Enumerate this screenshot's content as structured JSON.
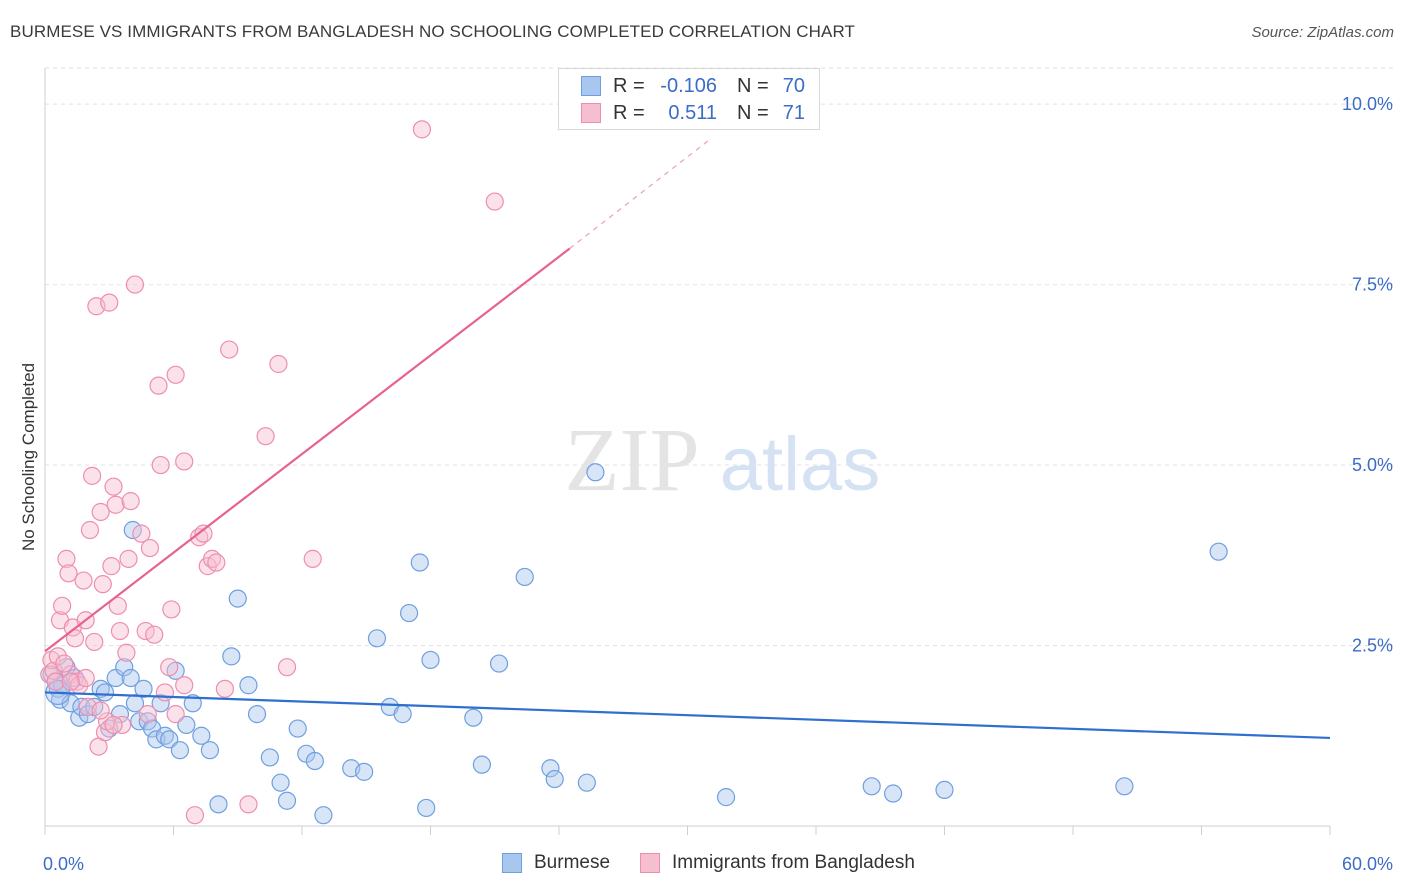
{
  "header": {
    "title": "BURMESE VS IMMIGRANTS FROM BANGLADESH NO SCHOOLING COMPLETED CORRELATION CHART",
    "source": "Source: ZipAtlas.com"
  },
  "watermark": {
    "zip": "ZIP",
    "atlas": "atlas"
  },
  "legend": {
    "r_label": "R =",
    "n_label": "N =",
    "rows": [
      {
        "series": "Burmese",
        "r": "-0.106",
        "n": "70"
      },
      {
        "series": "Immigrants from Bangladesh",
        "r": "0.511",
        "n": "71"
      }
    ]
  },
  "colors": {
    "burmese_fill": "#a9c6ee",
    "burmese_stroke": "#6f9fe0",
    "burmese_line": "#2f6fcf",
    "bangladesh_fill": "#f6bfd0",
    "bangladesh_stroke": "#ee8eaf",
    "bangladesh_line": "#e8628e",
    "tick_label": "#3b6cc7",
    "grid": "#e2e2e2"
  },
  "chart_data": {
    "type": "scatter",
    "title": "BURMESE VS IMMIGRANTS FROM BANGLADESH NO SCHOOLING COMPLETED CORRELATION CHART",
    "xlabel": "",
    "ylabel": "No Schooling Completed",
    "xlim": [
      0,
      60
    ],
    "ylim": [
      0,
      10.5
    ],
    "x_tick_labels": [
      "0.0%",
      "60.0%"
    ],
    "y_ticks": [
      2.5,
      5.0,
      7.5,
      10.0
    ],
    "y_tick_labels": [
      "2.5%",
      "5.0%",
      "7.5%",
      "10.0%"
    ],
    "grid": true,
    "legend_position": "top-center",
    "series": [
      {
        "name": "Burmese",
        "r": -0.106,
        "n": 70,
        "trend": {
          "x": [
            0,
            60
          ],
          "y": [
            1.85,
            1.22
          ]
        },
        "points": [
          [
            0.3,
            2.1
          ],
          [
            0.5,
            2.0
          ],
          [
            0.6,
            1.9
          ],
          [
            0.7,
            1.75
          ],
          [
            0.8,
            1.95
          ],
          [
            1.0,
            2.2
          ],
          [
            1.2,
            1.7
          ],
          [
            1.4,
            2.05
          ],
          [
            1.6,
            1.5
          ],
          [
            1.7,
            1.65
          ],
          [
            2.0,
            1.55
          ],
          [
            2.3,
            1.65
          ],
          [
            2.6,
            1.9
          ],
          [
            2.8,
            1.85
          ],
          [
            3.0,
            1.35
          ],
          [
            3.3,
            2.05
          ],
          [
            3.5,
            1.55
          ],
          [
            3.7,
            2.2
          ],
          [
            4.0,
            2.05
          ],
          [
            4.2,
            1.7
          ],
          [
            4.4,
            1.45
          ],
          [
            4.6,
            1.9
          ],
          [
            4.8,
            1.45
          ],
          [
            5.0,
            1.35
          ],
          [
            5.2,
            1.2
          ],
          [
            5.4,
            1.7
          ],
          [
            5.6,
            1.25
          ],
          [
            5.8,
            1.2
          ],
          [
            6.1,
            2.15
          ],
          [
            6.3,
            1.05
          ],
          [
            6.6,
            1.4
          ],
          [
            6.9,
            1.7
          ],
          [
            7.3,
            1.25
          ],
          [
            7.7,
            1.05
          ],
          [
            8.1,
            0.3
          ],
          [
            8.7,
            2.35
          ],
          [
            9.0,
            3.15
          ],
          [
            9.5,
            1.95
          ],
          [
            9.9,
            1.55
          ],
          [
            10.5,
            0.95
          ],
          [
            11.0,
            0.6
          ],
          [
            11.3,
            0.35
          ],
          [
            11.8,
            1.35
          ],
          [
            12.2,
            1.0
          ],
          [
            12.6,
            0.9
          ],
          [
            13.0,
            0.15
          ],
          [
            14.3,
            0.8
          ],
          [
            14.9,
            0.75
          ],
          [
            15.5,
            2.6
          ],
          [
            16.1,
            1.65
          ],
          [
            16.7,
            1.55
          ],
          [
            17.0,
            2.95
          ],
          [
            17.5,
            3.65
          ],
          [
            17.8,
            0.25
          ],
          [
            18.0,
            2.3
          ],
          [
            20.0,
            1.5
          ],
          [
            20.4,
            0.85
          ],
          [
            21.2,
            2.25
          ],
          [
            22.4,
            3.45
          ],
          [
            23.6,
            0.8
          ],
          [
            23.8,
            0.65
          ],
          [
            25.3,
            0.6
          ],
          [
            25.7,
            4.9
          ],
          [
            31.8,
            0.4
          ],
          [
            38.6,
            0.55
          ],
          [
            39.6,
            0.45
          ],
          [
            42.0,
            0.5
          ],
          [
            50.4,
            0.55
          ],
          [
            54.8,
            3.8
          ],
          [
            4.1,
            4.1
          ]
        ]
      },
      {
        "name": "Immigrants from Bangladesh",
        "r": 0.511,
        "n": 71,
        "trend": {
          "x": [
            0,
            24.5
          ],
          "y": [
            2.42,
            8.0
          ],
          "dashed_to": {
            "x": 31,
            "y": 9.5
          }
        },
        "points": [
          [
            0.2,
            2.1
          ],
          [
            0.3,
            2.3
          ],
          [
            0.4,
            2.15
          ],
          [
            0.5,
            2.0
          ],
          [
            0.6,
            2.35
          ],
          [
            0.7,
            2.85
          ],
          [
            0.8,
            3.05
          ],
          [
            1.0,
            3.7
          ],
          [
            1.1,
            3.5
          ],
          [
            1.2,
            2.1
          ],
          [
            1.3,
            2.75
          ],
          [
            1.4,
            2.6
          ],
          [
            1.5,
            2.0
          ],
          [
            1.6,
            1.95
          ],
          [
            1.8,
            3.4
          ],
          [
            1.9,
            2.85
          ],
          [
            2.0,
            1.65
          ],
          [
            2.1,
            4.1
          ],
          [
            2.2,
            4.85
          ],
          [
            2.3,
            2.55
          ],
          [
            2.4,
            7.2
          ],
          [
            2.5,
            1.1
          ],
          [
            2.6,
            4.35
          ],
          [
            2.7,
            3.35
          ],
          [
            2.8,
            1.3
          ],
          [
            2.9,
            1.45
          ],
          [
            3.0,
            7.25
          ],
          [
            3.1,
            3.6
          ],
          [
            3.2,
            4.7
          ],
          [
            3.3,
            4.45
          ],
          [
            3.4,
            3.05
          ],
          [
            3.5,
            2.7
          ],
          [
            3.6,
            1.4
          ],
          [
            3.8,
            2.4
          ],
          [
            3.9,
            3.7
          ],
          [
            4.0,
            4.5
          ],
          [
            4.2,
            7.5
          ],
          [
            4.5,
            4.05
          ],
          [
            4.7,
            2.7
          ],
          [
            4.9,
            3.85
          ],
          [
            5.1,
            2.65
          ],
          [
            5.3,
            6.1
          ],
          [
            5.4,
            5.0
          ],
          [
            5.6,
            1.85
          ],
          [
            5.8,
            2.2
          ],
          [
            5.9,
            3.0
          ],
          [
            6.1,
            6.25
          ],
          [
            6.5,
            5.05
          ],
          [
            7.0,
            0.15
          ],
          [
            7.2,
            4.0
          ],
          [
            7.4,
            4.05
          ],
          [
            7.6,
            3.6
          ],
          [
            7.8,
            3.7
          ],
          [
            8.0,
            3.65
          ],
          [
            8.4,
            1.9
          ],
          [
            8.6,
            6.6
          ],
          [
            9.5,
            0.3
          ],
          [
            10.3,
            5.4
          ],
          [
            10.9,
            6.4
          ],
          [
            12.5,
            3.7
          ],
          [
            17.6,
            9.65
          ],
          [
            21.0,
            8.65
          ],
          [
            6.5,
            1.95
          ],
          [
            3.2,
            1.4
          ],
          [
            1.9,
            2.05
          ],
          [
            1.2,
            2.0
          ],
          [
            2.6,
            1.6
          ],
          [
            0.9,
            2.25
          ],
          [
            4.8,
            1.55
          ],
          [
            6.1,
            1.55
          ],
          [
            11.3,
            2.2
          ]
        ]
      }
    ]
  }
}
